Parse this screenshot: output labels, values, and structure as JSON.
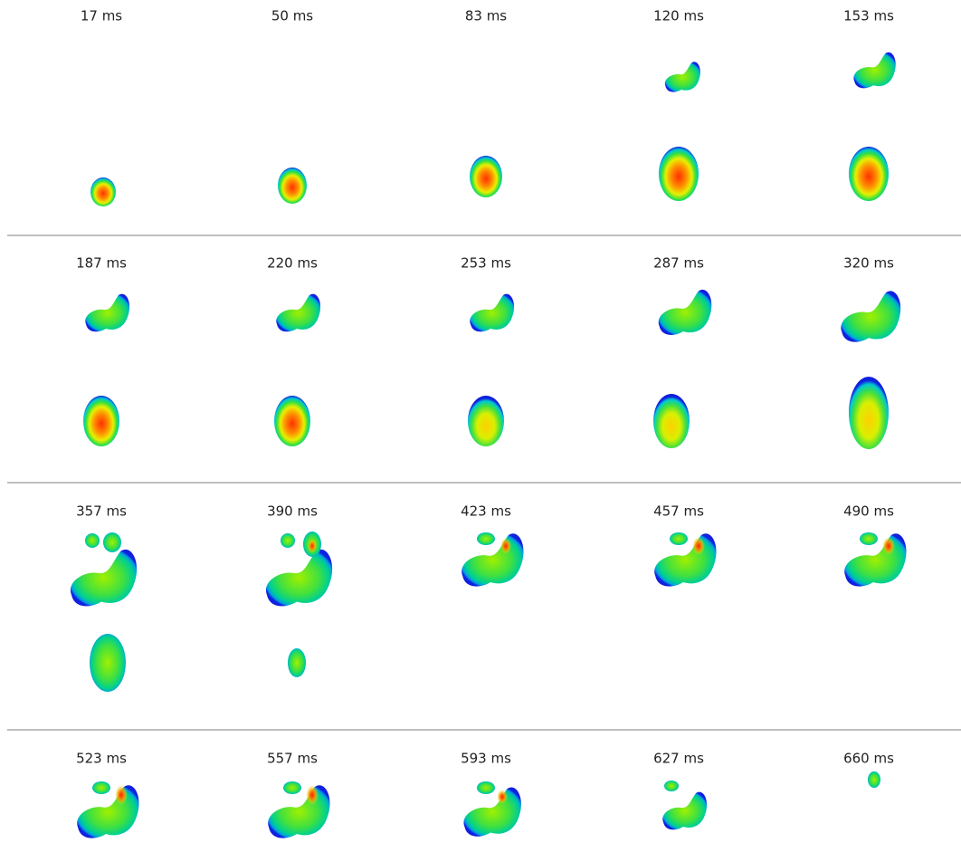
{
  "frames": [
    "17 ms",
    "50 ms",
    "83 ms",
    "120 ms",
    "153 ms",
    "187 ms",
    "220 ms",
    "253 ms",
    "287 ms",
    "320 ms",
    "357 ms",
    "390 ms",
    "423 ms",
    "457 ms",
    "490 ms",
    "523 ms",
    "557 ms",
    "593 ms",
    "627 ms",
    "660 ms"
  ]
}
